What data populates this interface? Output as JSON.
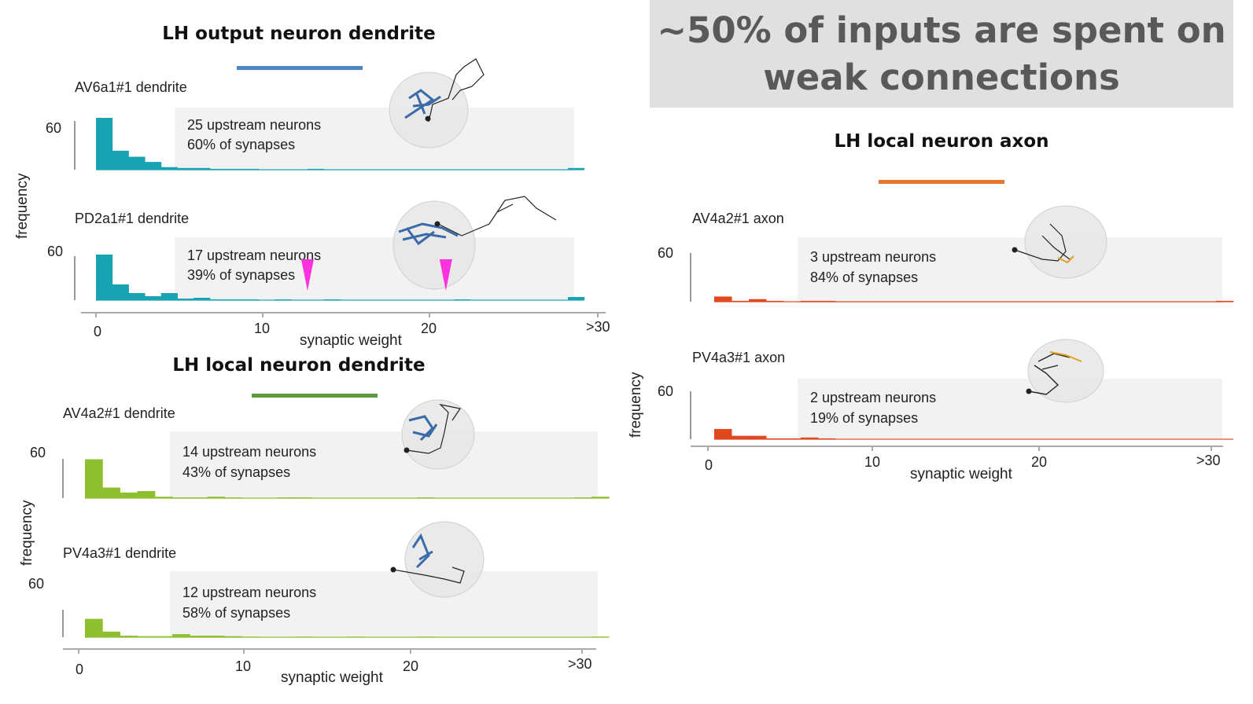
{
  "banner": {
    "line1": "~50% of inputs are spent on",
    "line2": "weak connections",
    "bg": "#e0e0e0"
  },
  "sections": [
    {
      "id": "output",
      "title": "LH output neuron dendrite",
      "color": "#4a86c8"
    },
    {
      "id": "localdend",
      "title": "LH local neuron dendrite",
      "color": "#5a9a3c"
    },
    {
      "id": "localaxon",
      "title": "LH local neuron axon",
      "color": "#e8742a"
    }
  ],
  "axes": {
    "xlabel": "synaptic weight",
    "ylabel": "frequency",
    "xticks": [
      "0",
      "10",
      "20",
      ">30"
    ],
    "ytick": "60"
  },
  "annotations": {
    "markers": "magenta-triangle-markers",
    "marker_color": "#ff33dd"
  },
  "icons": [
    "neuron-morphology-icon"
  ],
  "chart_data": [
    {
      "type": "bar",
      "title": "AV6a1#1 dendrite",
      "color": "#18a3b3",
      "info": [
        "25 upstream neurons",
        "60% of synapses"
      ],
      "xlabel": "synaptic weight",
      "ylabel": "frequency",
      "x": [
        1,
        2,
        3,
        4,
        5,
        6,
        7,
        8,
        9,
        10,
        11,
        12,
        13,
        14,
        15,
        16,
        17,
        18,
        19,
        20,
        21,
        22,
        23,
        24,
        25,
        26,
        27,
        28,
        29,
        30
      ],
      "values": [
        60,
        22,
        15,
        9,
        3,
        2,
        2,
        1,
        1,
        1,
        0,
        0,
        0,
        1,
        0,
        0,
        0,
        0,
        0,
        0,
        0,
        0,
        0,
        0,
        0,
        0,
        0,
        0,
        0,
        2
      ],
      "ylim": [
        0,
        60
      ],
      "xticks": [
        "0",
        "10",
        "20",
        ">30"
      ]
    },
    {
      "type": "bar",
      "title": "PD2a1#1 dendrite",
      "color": "#18a3b3",
      "info": [
        "17 upstream neurons",
        "39% of synapses"
      ],
      "xlabel": "synaptic weight",
      "ylabel": "frequency",
      "x": [
        1,
        2,
        3,
        4,
        5,
        6,
        7,
        8,
        9,
        10,
        11,
        12,
        13,
        14,
        15,
        16,
        17,
        18,
        19,
        20,
        21,
        22,
        23,
        24,
        25,
        26,
        27,
        28,
        29,
        30
      ],
      "values": [
        58,
        20,
        9,
        5,
        9,
        2,
        3,
        1,
        1,
        1,
        0,
        1,
        0,
        0,
        1,
        0,
        0,
        0,
        0,
        0,
        0,
        0,
        1,
        0,
        0,
        0,
        0,
        0,
        0,
        4
      ],
      "ylim": [
        0,
        60
      ],
      "markers_x": [
        14,
        22.5
      ],
      "xticks": [
        "0",
        "10",
        "20",
        ">30"
      ]
    },
    {
      "type": "bar",
      "title": "AV4a2#1 dendrite",
      "color": "#8dbf2f",
      "info": [
        "14 upstream neurons",
        "43% of synapses"
      ],
      "xlabel": "synaptic weight",
      "ylabel": "frequency",
      "x": [
        1,
        2,
        3,
        4,
        5,
        6,
        7,
        8,
        9,
        10,
        11,
        12,
        13,
        14,
        15,
        16,
        17,
        18,
        19,
        20,
        21,
        22,
        23,
        24,
        25,
        26,
        27,
        28,
        29,
        30
      ],
      "values": [
        55,
        15,
        8,
        10,
        2,
        1,
        1,
        2,
        1,
        0,
        0,
        1,
        1,
        0,
        0,
        0,
        0,
        0,
        0,
        1,
        0,
        0,
        0,
        0,
        0,
        0,
        0,
        0,
        1,
        2
      ],
      "ylim": [
        0,
        60
      ],
      "xticks": [
        "0",
        "10",
        "20",
        ">30"
      ]
    },
    {
      "type": "bar",
      "title": "PV4a3#1 dendrite",
      "color": "#8dbf2f",
      "info": [
        "12 upstream neurons",
        "58% of synapses"
      ],
      "xlabel": "synaptic weight",
      "ylabel": "frequency",
      "x": [
        1,
        2,
        3,
        4,
        5,
        6,
        7,
        8,
        9,
        10,
        11,
        12,
        13,
        14,
        15,
        16,
        17,
        18,
        19,
        20,
        21,
        22,
        23,
        24,
        25,
        26,
        27,
        28,
        29,
        30
      ],
      "values": [
        36,
        11,
        3,
        2,
        2,
        6,
        3,
        3,
        2,
        1,
        0,
        0,
        1,
        0,
        0,
        1,
        0,
        0,
        0,
        1,
        0,
        0,
        0,
        0,
        0,
        0,
        0,
        0,
        0,
        1
      ],
      "ylim": [
        0,
        60
      ],
      "xticks": [
        "0",
        "10",
        "20",
        ">30"
      ]
    },
    {
      "type": "bar",
      "title": "AV4a2#1 axon",
      "color": "#e0481e",
      "info": [
        "3 upstream neurons",
        "84% of synapses"
      ],
      "xlabel": "synaptic weight",
      "ylabel": "frequency",
      "x": [
        1,
        2,
        3,
        4,
        5,
        6,
        7,
        8,
        9,
        10,
        11,
        12,
        13,
        14,
        15,
        16,
        17,
        18,
        19,
        20,
        21,
        22,
        23,
        24,
        25,
        26,
        27,
        28,
        29,
        30
      ],
      "values": [
        6,
        1,
        3,
        1,
        0,
        1,
        1,
        0,
        0,
        0,
        0,
        0,
        0,
        0,
        0,
        0,
        0,
        0,
        0,
        0,
        0,
        0,
        0,
        0,
        0,
        0,
        0,
        0,
        0,
        1
      ],
      "ylim": [
        0,
        60
      ],
      "xticks": [
        "0",
        "10",
        "20",
        ">30"
      ]
    },
    {
      "type": "bar",
      "title": "PV4a3#1 axon",
      "color": "#e0481e",
      "info": [
        "2 upstream neurons",
        "19% of synapses"
      ],
      "xlabel": "synaptic weight",
      "ylabel": "frequency",
      "x": [
        1,
        2,
        3,
        4,
        5,
        6,
        7,
        8,
        9,
        10,
        11,
        12,
        13,
        14,
        15,
        16,
        17,
        18,
        19,
        20,
        21,
        22,
        23,
        24,
        25,
        26,
        27,
        28,
        29,
        30
      ],
      "values": [
        12,
        4,
        4,
        1,
        1,
        2,
        1,
        0,
        0,
        0,
        0,
        0,
        0,
        0,
        0,
        0,
        0,
        0,
        0,
        0,
        0,
        0,
        0,
        0,
        0,
        0,
        0,
        0,
        0,
        0
      ],
      "ylim": [
        0,
        60
      ],
      "xticks": [
        "0",
        "10",
        "20",
        ">30"
      ]
    }
  ]
}
